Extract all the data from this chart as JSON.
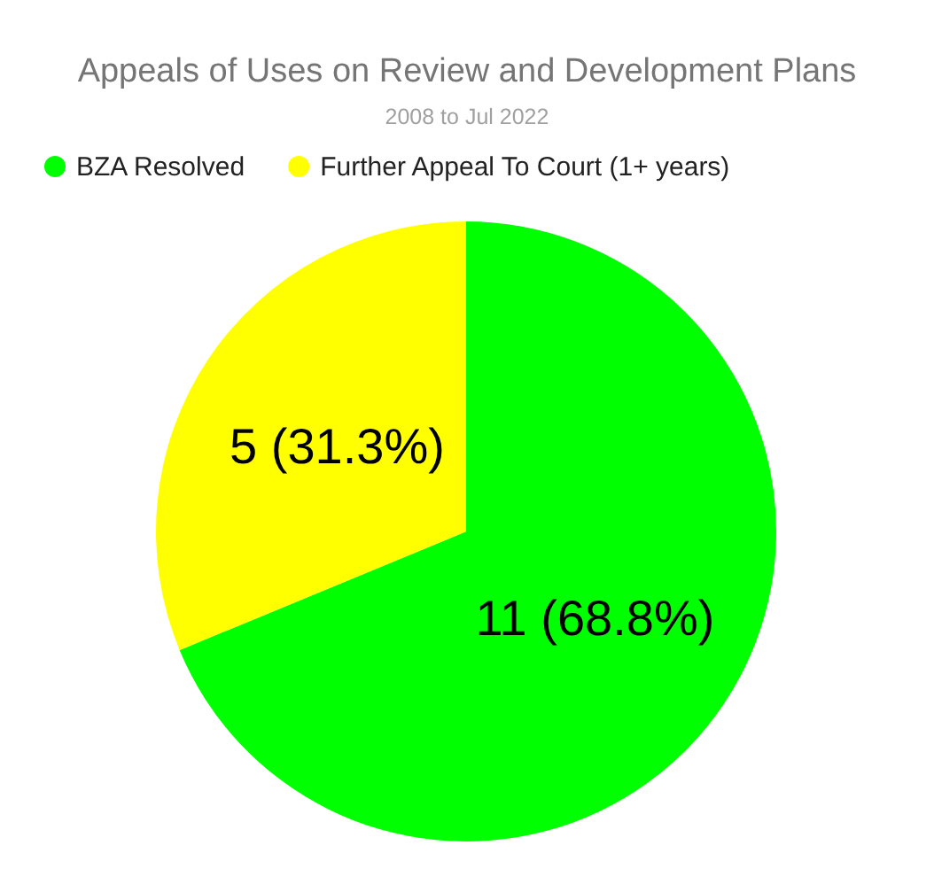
{
  "chart_data": {
    "type": "pie",
    "title": "Appeals of Uses on Review and Development Plans",
    "subtitle": "2008 to Jul 2022",
    "categories": [
      "BZA Resolved",
      "Further Appeal To Court (1+ years)"
    ],
    "values": [
      11,
      5
    ],
    "colors": [
      "#00ff00",
      "#ffff00"
    ],
    "value_labels": [
      "11 (68.8%)",
      "5 (31.3%)"
    ],
    "legend": "top left",
    "marker": "circle"
  }
}
